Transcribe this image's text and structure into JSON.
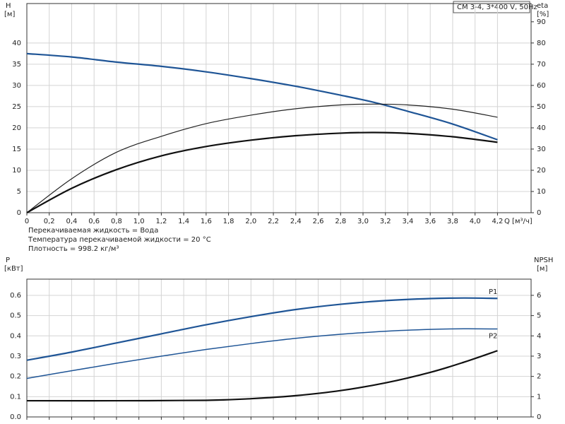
{
  "chart_data": [
    {
      "type": "line",
      "title": "CM 3-4, 3*400 V, 50Hz",
      "x_label": "Q [м³/ч]",
      "y_label": "H",
      "y_unit": "[м]",
      "y2_label": "eta",
      "y2_unit": "[%]",
      "notes": [
        "Перекачиваемая жидкость = Вода",
        "Температура перекачиваемой жидкости = 20 °C",
        "Плотность = 998.2 кг/м³"
      ],
      "xlim": [
        0,
        4.5
      ],
      "xticks": [
        0,
        {
          "value": 0.2,
          "label": "0,2"
        },
        {
          "value": 0.4,
          "label": "0,4"
        },
        {
          "value": 0.6,
          "label": "0,6"
        },
        {
          "value": 0.8,
          "label": "0,8"
        },
        {
          "value": 1.0,
          "label": "1,0"
        },
        {
          "value": 1.2,
          "label": "1,2"
        },
        {
          "value": 1.4,
          "label": "1,4"
        },
        {
          "value": 1.6,
          "label": "1,6"
        },
        {
          "value": 1.8,
          "label": "1,8"
        },
        {
          "value": 2.0,
          "label": "2,0"
        },
        {
          "value": 2.2,
          "label": "2,2"
        },
        {
          "value": 2.4,
          "label": "2,4"
        },
        {
          "value": 2.6,
          "label": "2,6"
        },
        {
          "value": 2.8,
          "label": "2,8"
        },
        {
          "value": 3.0,
          "label": "3,0"
        },
        {
          "value": 3.2,
          "label": "3,2"
        },
        {
          "value": 3.4,
          "label": "3,4"
        },
        {
          "value": 3.6,
          "label": "3,6"
        },
        {
          "value": 3.8,
          "label": "3,8"
        },
        {
          "value": 4.0,
          "label": "4,0"
        },
        {
          "value": 4.2,
          "label": "4,2"
        }
      ],
      "ylim": [
        0,
        49.3
      ],
      "yticks": [
        0,
        5,
        10,
        15,
        20,
        25,
        30,
        35,
        40
      ],
      "y2lim": [
        0,
        98.6
      ],
      "y2ticks": [
        0,
        10,
        20,
        30,
        40,
        50,
        60,
        70,
        80,
        90
      ],
      "grid": true,
      "series": [
        {
          "color": "#1f5596",
          "line_width": 2.2,
          "x": [
            0,
            0.4,
            0.8,
            1.2,
            1.6,
            2.0,
            2.4,
            2.8,
            3.1,
            3.4,
            3.8,
            4.2
          ],
          "values": [
            37.5,
            36.7,
            35.5,
            34.5,
            33.2,
            31.6,
            29.8,
            27.7,
            26,
            23.9,
            20.9,
            17.2
          ]
        },
        {
          "color": "#222222",
          "line_width": 1.2,
          "axis": "y2",
          "x": [
            0,
            0.4,
            0.8,
            1.2,
            1.6,
            2.0,
            2.4,
            2.8,
            3.1,
            3.4,
            3.8,
            4.2
          ],
          "values": [
            0,
            16,
            28.5,
            36,
            42,
            46,
            49,
            50.8,
            51.2,
            50.8,
            48.8,
            45
          ]
        },
        {
          "color": "#111111",
          "line_width": 2.2,
          "axis": "y2",
          "x": [
            0,
            0.4,
            0.8,
            1.2,
            1.6,
            2.0,
            2.4,
            2.8,
            3.1,
            3.4,
            3.8,
            4.2
          ],
          "values": [
            0,
            11.5,
            20.3,
            26.8,
            31.2,
            34.2,
            36.3,
            37.5,
            37.8,
            37.4,
            35.8,
            33.2
          ]
        }
      ]
    },
    {
      "type": "line",
      "y_label": "P",
      "y_unit": "[кВт]",
      "y2_label": "NPSH",
      "y2_unit": "[м]",
      "xlim": [
        0,
        4.5
      ],
      "ylim": [
        0,
        0.68
      ],
      "yticks": [
        {
          "value": 0,
          "label": "0.0"
        },
        0.1,
        0.2,
        0.3,
        0.4,
        0.5,
        0.6
      ],
      "y2lim": [
        0,
        6.8
      ],
      "y2ticks": [
        0,
        1,
        2,
        3,
        4,
        5,
        6
      ],
      "grid": true,
      "series": [
        {
          "name": "P1",
          "color": "#1f5596",
          "line_width": 2.2,
          "x": [
            0,
            0.4,
            0.8,
            1.2,
            1.6,
            2.0,
            2.4,
            2.8,
            3.2,
            3.6,
            3.9,
            4.2
          ],
          "values": [
            0.28,
            0.32,
            0.365,
            0.41,
            0.455,
            0.495,
            0.53,
            0.556,
            0.574,
            0.584,
            0.587,
            0.585
          ]
        },
        {
          "name": "P2",
          "color": "#1f5596",
          "line_width": 1.5,
          "x": [
            0,
            0.4,
            0.8,
            1.2,
            1.6,
            2.0,
            2.4,
            2.8,
            3.2,
            3.6,
            3.9,
            4.2
          ],
          "values": [
            0.19,
            0.228,
            0.265,
            0.3,
            0.333,
            0.362,
            0.388,
            0.408,
            0.423,
            0.432,
            0.435,
            0.434
          ]
        },
        {
          "color": "#111111",
          "line_width": 2.2,
          "axis": "y2",
          "x": [
            0,
            0.8,
            1.6,
            2.0,
            2.4,
            2.8,
            3.2,
            3.6,
            3.9,
            4.2
          ],
          "values": [
            0.8,
            0.8,
            0.82,
            0.9,
            1.05,
            1.3,
            1.68,
            2.2,
            2.7,
            3.27
          ]
        }
      ]
    }
  ]
}
